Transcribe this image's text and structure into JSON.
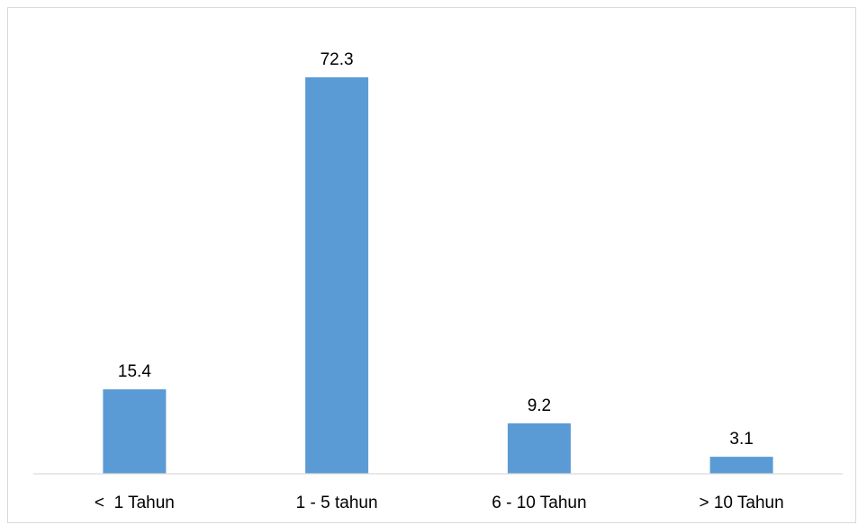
{
  "chart_data": {
    "type": "bar",
    "title": "",
    "xlabel": "",
    "ylabel": "",
    "categories": [
      "<  1 Tahun",
      "1 - 5 tahun",
      "6 - 10 Tahun",
      "> 10 Tahun"
    ],
    "values": [
      15.4,
      72.3,
      9.2,
      3.1
    ],
    "value_labels": [
      "15.4",
      "72.3",
      "9.2",
      "3.1"
    ],
    "ylim": [
      0,
      80
    ],
    "grid": false,
    "legend": "none",
    "bar_color": "#5b9bd5",
    "axis_color": "#d9d9d9"
  }
}
